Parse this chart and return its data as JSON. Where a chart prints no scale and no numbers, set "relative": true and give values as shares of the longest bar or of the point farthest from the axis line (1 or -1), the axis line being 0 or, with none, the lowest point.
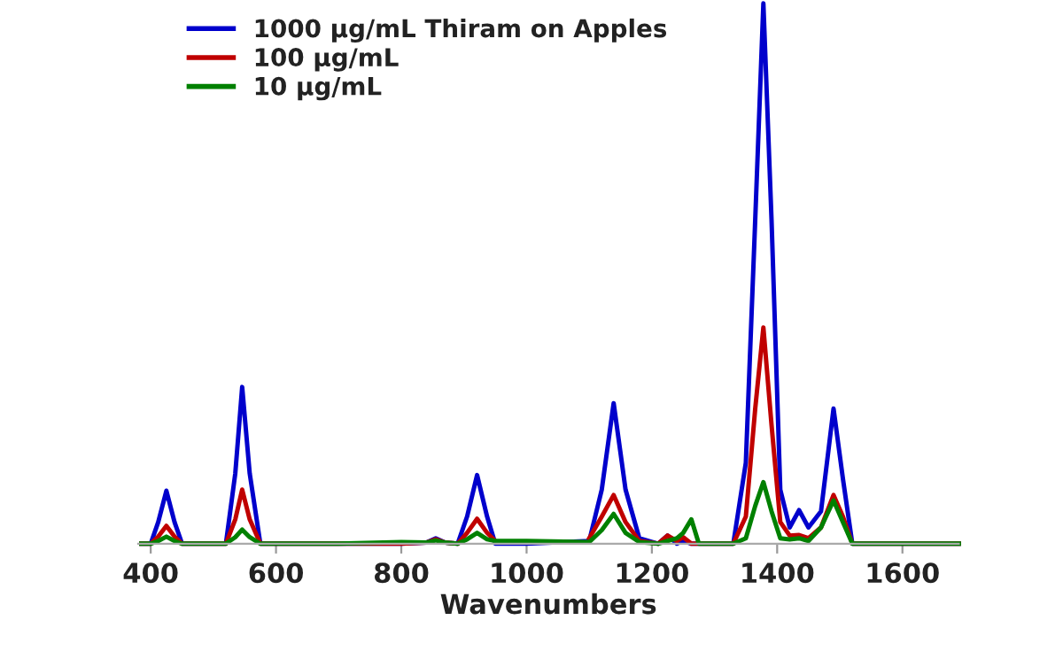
{
  "chart_data": {
    "type": "line",
    "xlabel": "Wavenumbers",
    "relative": true,
    "x": [
      385,
      400,
      412,
      425,
      438,
      450,
      520,
      535,
      546,
      558,
      575,
      700,
      800,
      840,
      855,
      870,
      890,
      905,
      921,
      937,
      950,
      1000,
      1100,
      1120,
      1139,
      1158,
      1180,
      1210,
      1225,
      1240,
      1250,
      1263,
      1275,
      1330,
      1350,
      1365,
      1378,
      1391,
      1405,
      1420,
      1435,
      1450,
      1470,
      1490,
      1505,
      1520,
      1600,
      1690
    ],
    "xlim": [
      380,
      1690
    ],
    "xticks": [
      400,
      600,
      800,
      1000,
      1200,
      1400,
      1600
    ],
    "series": [
      {
        "name": "1000 µg/mL Thiram on Apples",
        "color": "#0000cc",
        "values": [
          0,
          0,
          0.04,
          0.098,
          0.04,
          0,
          0,
          0.13,
          0.29,
          0.13,
          0,
          0,
          0,
          0.002,
          0.01,
          0.002,
          0,
          0.05,
          0.127,
          0.05,
          0,
          0,
          0.005,
          0.1,
          0.26,
          0.1,
          0.01,
          0,
          0.015,
          0,
          0.005,
          0,
          0,
          0,
          0.15,
          0.6,
          1.0,
          0.6,
          0.1,
          0.03,
          0.062,
          0.03,
          0.06,
          0.25,
          0.12,
          0,
          0,
          0
        ]
      },
      {
        "name": "100 µg/mL",
        "color": "#c00000",
        "values": [
          0,
          0,
          0.013,
          0.033,
          0.013,
          0,
          0,
          0.045,
          0.1,
          0.045,
          0,
          0,
          0,
          0.002,
          0.008,
          0.002,
          0,
          0.02,
          0.046,
          0.02,
          0.005,
          null,
          0.01,
          0.05,
          0.09,
          0.04,
          0.005,
          0,
          0.015,
          0.005,
          0.012,
          0,
          0,
          0,
          0.05,
          0.25,
          0.4,
          0.22,
          0.04,
          0.015,
          0.016,
          0.01,
          0.03,
          0.09,
          0.05,
          0,
          0,
          0
        ]
      },
      {
        "name": "10 µg/mL",
        "color": "#008000",
        "values": [
          0,
          0,
          0.005,
          0.013,
          0.005,
          0,
          0,
          0.012,
          0.026,
          0.012,
          0,
          0,
          0.003,
          0.002,
          0.006,
          0.002,
          0,
          0.008,
          0.02,
          0.008,
          0.005,
          0.005,
          0.003,
          0.025,
          0.055,
          0.02,
          0.003,
          0,
          0.005,
          0.01,
          0.02,
          0.045,
          0,
          0,
          0.01,
          0.07,
          0.114,
          0.06,
          0.01,
          0.008,
          0.01,
          0.005,
          0.03,
          0.08,
          0.04,
          0,
          0,
          0
        ]
      }
    ],
    "legend": "top left",
    "grid": false,
    "marker": "none",
    "line_style": "solid"
  }
}
